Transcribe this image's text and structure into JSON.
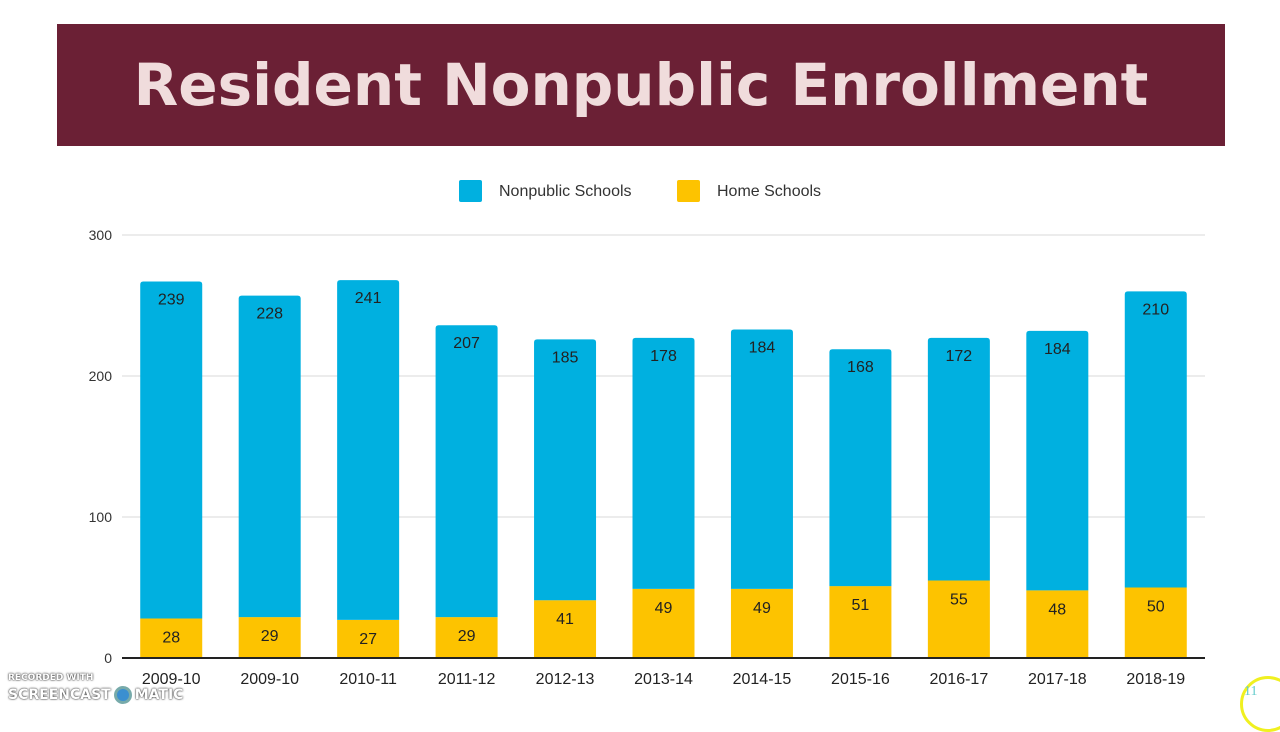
{
  "title": "Resident Nonpublic Enrollment",
  "slide_number": "11",
  "watermark": {
    "line1": "RECORDED WITH",
    "left": "SCREENCAST",
    "right": "MATIC"
  },
  "chart_data": {
    "type": "bar",
    "stacked": true,
    "categories": [
      "2009-10",
      "2009-10",
      "2010-11",
      "2011-12",
      "2012-13",
      "2013-14",
      "2014-15",
      "2015-16",
      "2016-17",
      "2017-18",
      "2018-19"
    ],
    "series": [
      {
        "name": "Home Schools",
        "color": "#fdc300",
        "values": [
          28,
          29,
          27,
          29,
          41,
          49,
          49,
          51,
          55,
          48,
          50
        ]
      },
      {
        "name": "Nonpublic Schools",
        "color": "#00b0e0",
        "values": [
          239,
          228,
          241,
          207,
          185,
          178,
          184,
          168,
          172,
          184,
          210
        ]
      }
    ],
    "legend_order": [
      "Nonpublic Schools",
      "Home Schools"
    ],
    "ylim": [
      0,
      300
    ],
    "yticks": [
      "0",
      "100",
      "200",
      "300"
    ],
    "grid": true,
    "legend_position": "top"
  }
}
